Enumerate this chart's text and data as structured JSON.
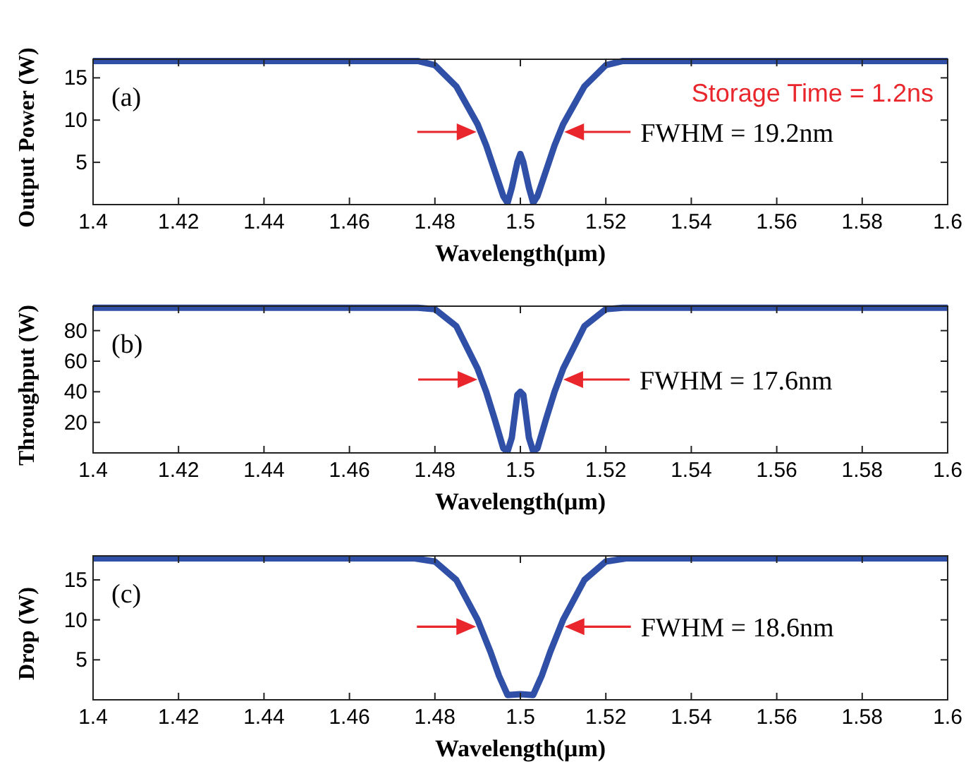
{
  "chart_data": [
    {
      "type": "line",
      "ylabel": "Output Power (W)",
      "xlabel": "Wavelength(μm)",
      "annotations": [
        "(a)",
        "Storage Time = 1.2ns",
        "FWHM = 19.2nm"
      ],
      "xlim": [
        1.4,
        1.6
      ],
      "ylim": [
        0,
        17.2
      ],
      "xticks": [
        1.4,
        1.42,
        1.44,
        1.46,
        1.48,
        1.5,
        1.52,
        1.54,
        1.56,
        1.58,
        1.6
      ],
      "yticks": [
        5,
        10,
        15
      ],
      "marker": "none",
      "line_style": "solid",
      "series": [
        {
          "color": "#3050a8",
          "x": [
            1.4,
            1.476,
            1.48,
            1.485,
            1.49,
            1.492,
            1.494,
            1.496,
            1.497,
            1.498,
            1.4993,
            1.5,
            1.5007,
            1.502,
            1.503,
            1.504,
            1.506,
            1.508,
            1.51,
            1.515,
            1.52,
            1.524,
            1.6
          ],
          "values": [
            17,
            17,
            16.5,
            14,
            9.5,
            7,
            4,
            1,
            0.2,
            2,
            5,
            6,
            5,
            2,
            0.2,
            1,
            4,
            7,
            9.5,
            14,
            16.5,
            17,
            17
          ]
        }
      ]
    },
    {
      "type": "line",
      "ylabel": "Throughput (W)",
      "xlabel": "Wavelength(μm)",
      "annotations": [
        "(b)",
        "FWHM = 17.6nm"
      ],
      "xlim": [
        1.4,
        1.6
      ],
      "ylim": [
        0,
        96
      ],
      "xticks": [
        1.4,
        1.42,
        1.44,
        1.46,
        1.48,
        1.5,
        1.52,
        1.54,
        1.56,
        1.58,
        1.6
      ],
      "yticks": [
        20,
        40,
        60,
        80
      ],
      "marker": "none",
      "line_style": "solid",
      "series": [
        {
          "color": "#3050a8",
          "x": [
            1.4,
            1.476,
            1.48,
            1.485,
            1.49,
            1.492,
            1.494,
            1.496,
            1.497,
            1.498,
            1.4993,
            1.5,
            1.5007,
            1.502,
            1.503,
            1.504,
            1.506,
            1.508,
            1.51,
            1.515,
            1.52,
            1.524,
            1.6
          ],
          "values": [
            95,
            95,
            94,
            83,
            55,
            40,
            22,
            3,
            1,
            10,
            38,
            40,
            38,
            10,
            1,
            3,
            22,
            40,
            55,
            83,
            94,
            95,
            95
          ]
        }
      ]
    },
    {
      "type": "line",
      "ylabel": "Drop (W)",
      "xlabel": "Wavelength(μm)",
      "annotations": [
        "(c)",
        "FWHM = 18.6nm"
      ],
      "xlim": [
        1.4,
        1.6
      ],
      "ylim": [
        0,
        18
      ],
      "xticks": [
        1.4,
        1.42,
        1.44,
        1.46,
        1.48,
        1.5,
        1.52,
        1.54,
        1.56,
        1.58,
        1.6
      ],
      "yticks": [
        5,
        10,
        15
      ],
      "marker": "none",
      "line_style": "solid",
      "series": [
        {
          "color": "#3050a8",
          "x": [
            1.4,
            1.475,
            1.48,
            1.485,
            1.49,
            1.493,
            1.495,
            1.497,
            1.5,
            1.503,
            1.505,
            1.507,
            1.51,
            1.515,
            1.52,
            1.525,
            1.6
          ],
          "values": [
            17.7,
            17.7,
            17.3,
            15,
            10,
            6,
            3,
            0.6,
            0.7,
            0.6,
            3,
            6,
            10,
            15,
            17.3,
            17.7,
            17.7
          ]
        }
      ]
    }
  ]
}
